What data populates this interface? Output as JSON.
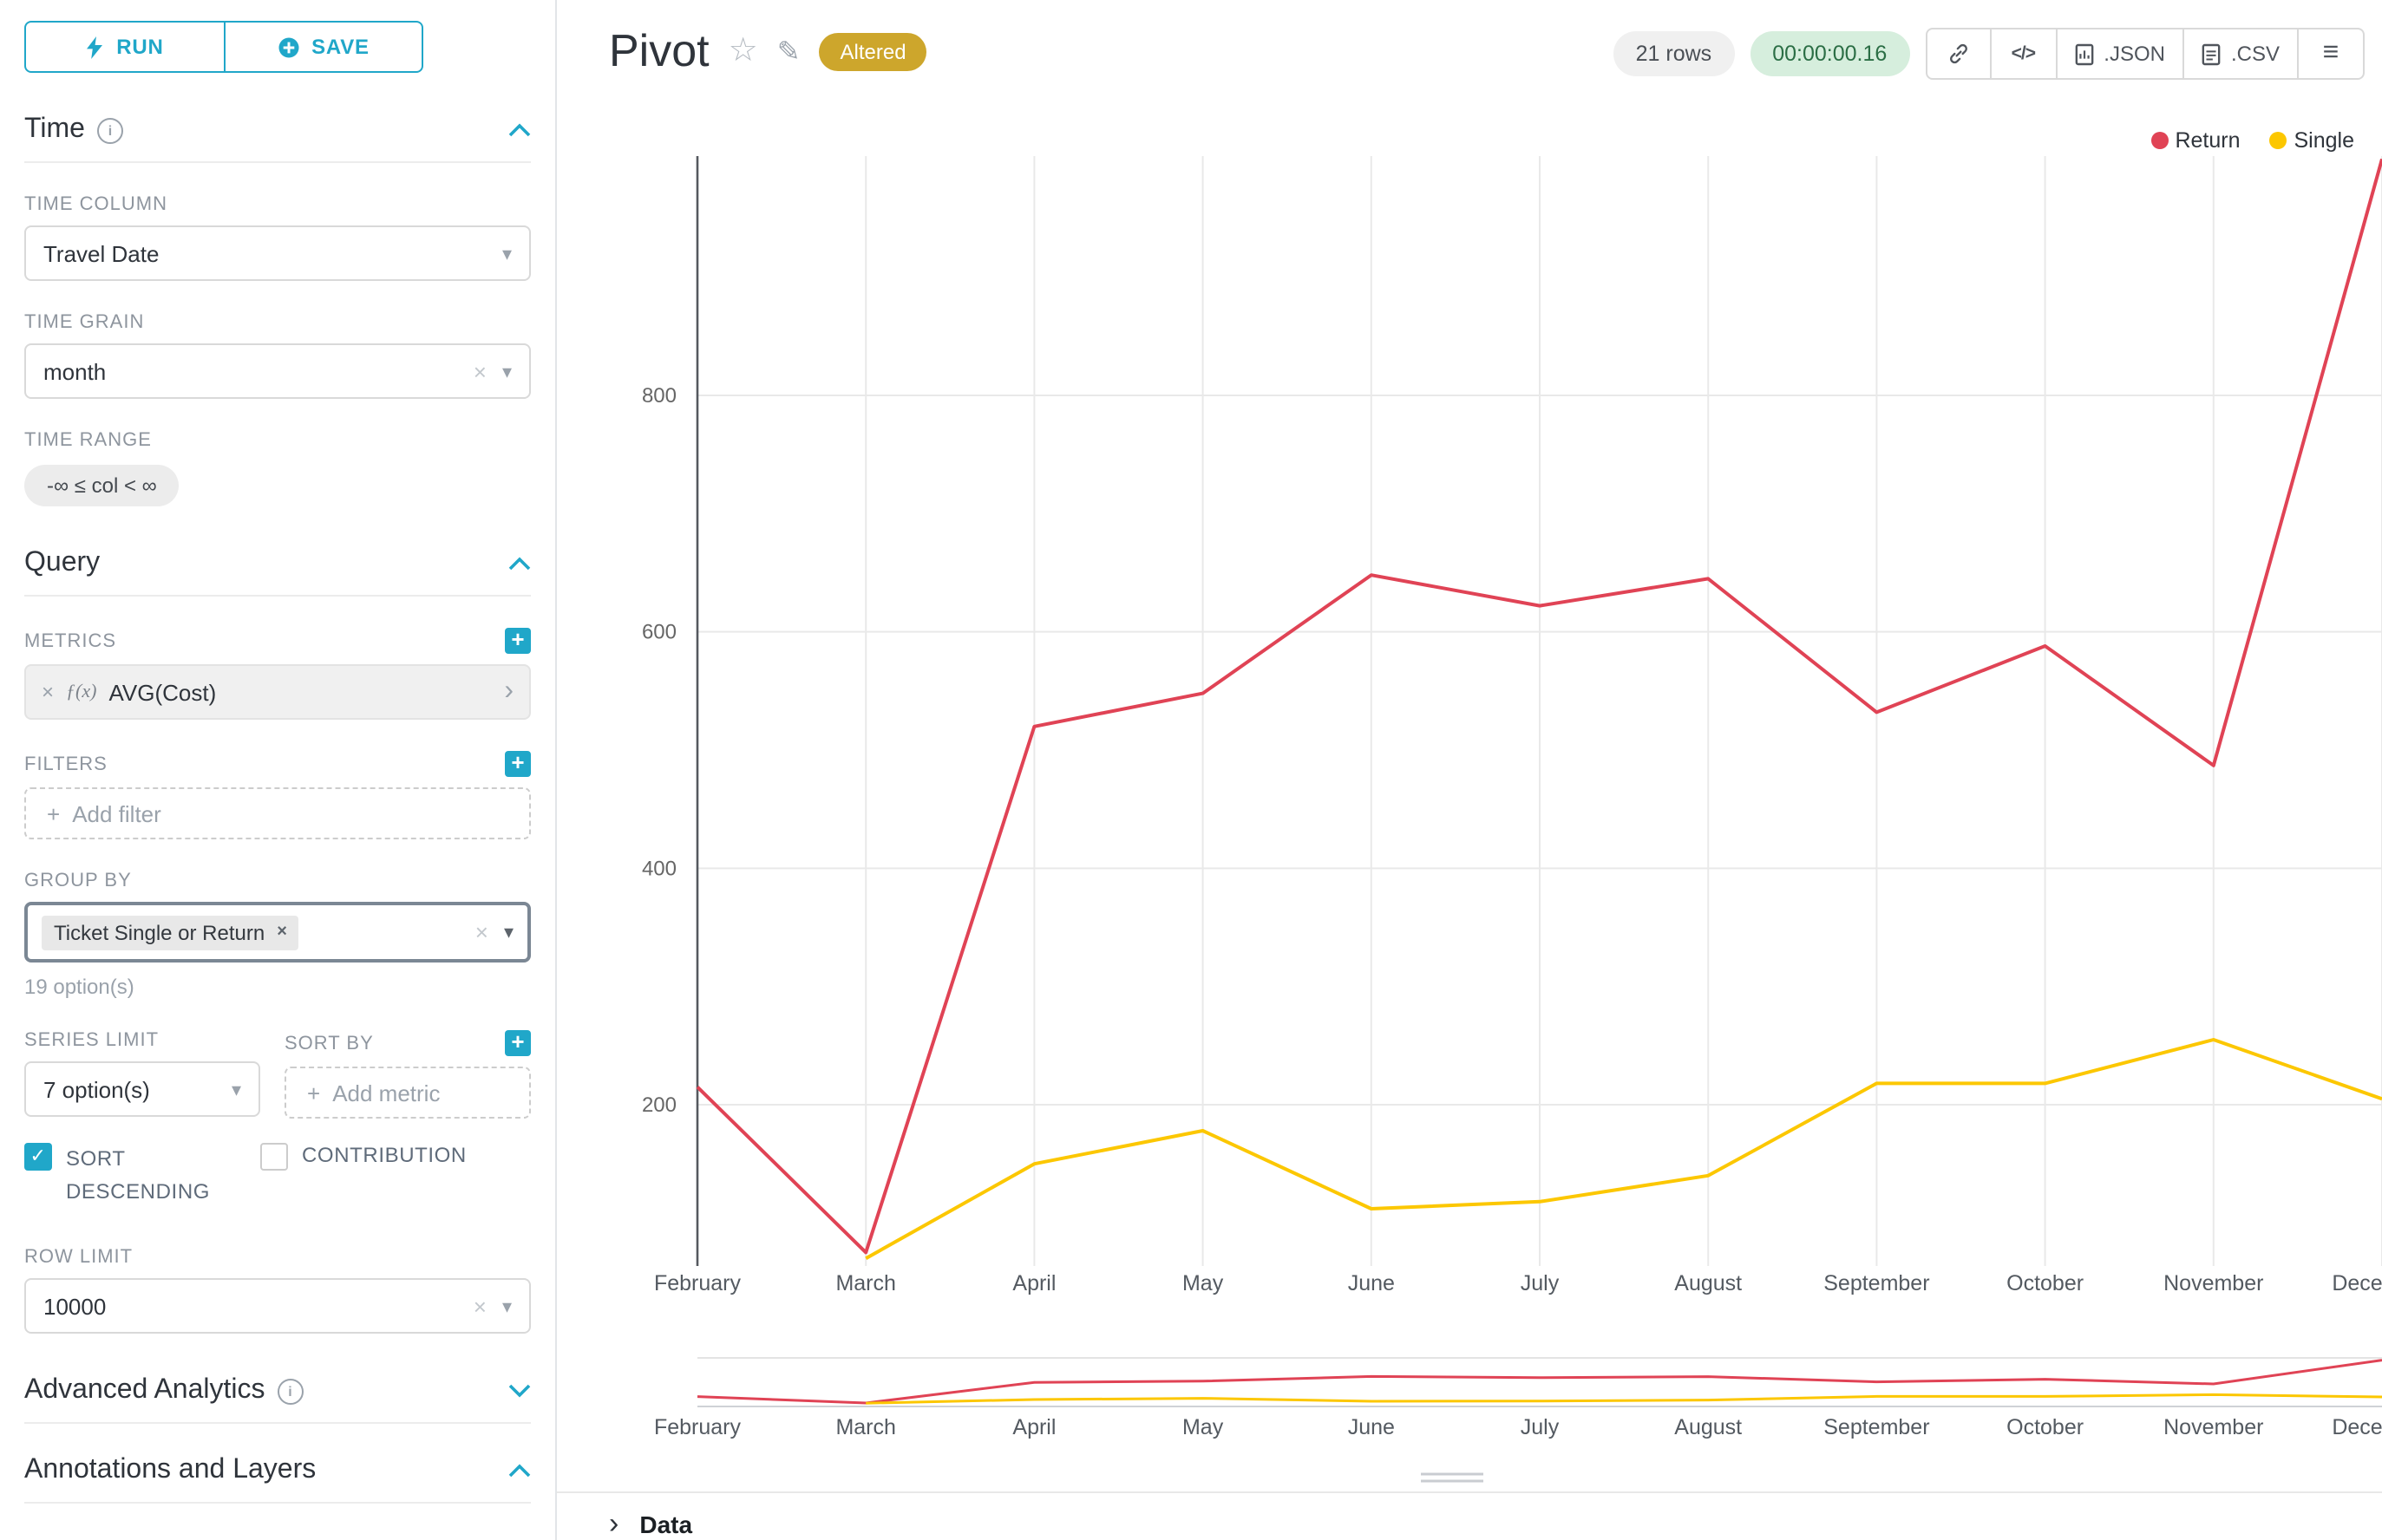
{
  "toolbar": {
    "run_label": "RUN",
    "save_label": "SAVE"
  },
  "sidebar": {
    "time": {
      "title": "Time",
      "time_column_label": "TIME COLUMN",
      "time_column_value": "Travel Date",
      "time_grain_label": "TIME GRAIN",
      "time_grain_value": "month",
      "time_range_label": "TIME RANGE",
      "time_range_value": "-∞ ≤ col < ∞"
    },
    "query": {
      "title": "Query",
      "metrics_label": "METRICS",
      "metric_value": "AVG(Cost)",
      "filters_label": "FILTERS",
      "add_filter_placeholder": "Add filter",
      "group_by_label": "GROUP BY",
      "group_by_tag": "Ticket Single or Return",
      "group_by_hint": "19 option(s)",
      "series_limit_label": "SERIES LIMIT",
      "series_limit_value": "7 option(s)",
      "sort_by_label": "SORT BY",
      "add_metric_placeholder": "Add metric",
      "sort_descending_label": "SORT DESCENDING",
      "contribution_label": "CONTRIBUTION",
      "row_limit_label": "ROW LIMIT",
      "row_limit_value": "10000"
    },
    "advanced_analytics_title": "Advanced Analytics",
    "annotations_title": "Annotations and Layers"
  },
  "header": {
    "title": "Pivot",
    "altered_badge": "Altered",
    "altered_color": "#cda62c",
    "rows_badge": "21 rows",
    "timer_badge": "00:00:00.16",
    "json_label": ".JSON",
    "csv_label": ".CSV"
  },
  "main": {
    "data_label": "Data"
  },
  "icons": {
    "star": "☆",
    "edit": "✎",
    "info": "i",
    "clear": "×",
    "caret": "▾",
    "plus": "+",
    "check": "✓",
    "chevron_right": "›",
    "menu": "≡",
    "code": "</>",
    "fx": "ƒ(x)"
  },
  "colors": {
    "accent": "#20a7c9",
    "grid": "#e9e9e9"
  },
  "chart_data": {
    "type": "line",
    "title": "Pivot",
    "categories": [
      "February",
      "March",
      "April",
      "May",
      "June",
      "July",
      "August",
      "September",
      "October",
      "November",
      "December"
    ],
    "series": [
      {
        "name": "Return",
        "color": "#e04355",
        "values": [
          215,
          75,
          520,
          548,
          648,
          622,
          645,
          532,
          588,
          487,
          1000
        ]
      },
      {
        "name": "Single",
        "color": "#fcc700",
        "values": [
          null,
          70,
          150,
          178,
          112,
          118,
          140,
          218,
          218,
          255,
          205
        ]
      }
    ],
    "y_ticks": [
      200,
      400,
      600,
      800
    ],
    "ylim": [
      50,
      1000
    ],
    "grid": true,
    "legend_position": "top-right",
    "has_mini_preview": true,
    "xlabel": "",
    "ylabel": ""
  }
}
